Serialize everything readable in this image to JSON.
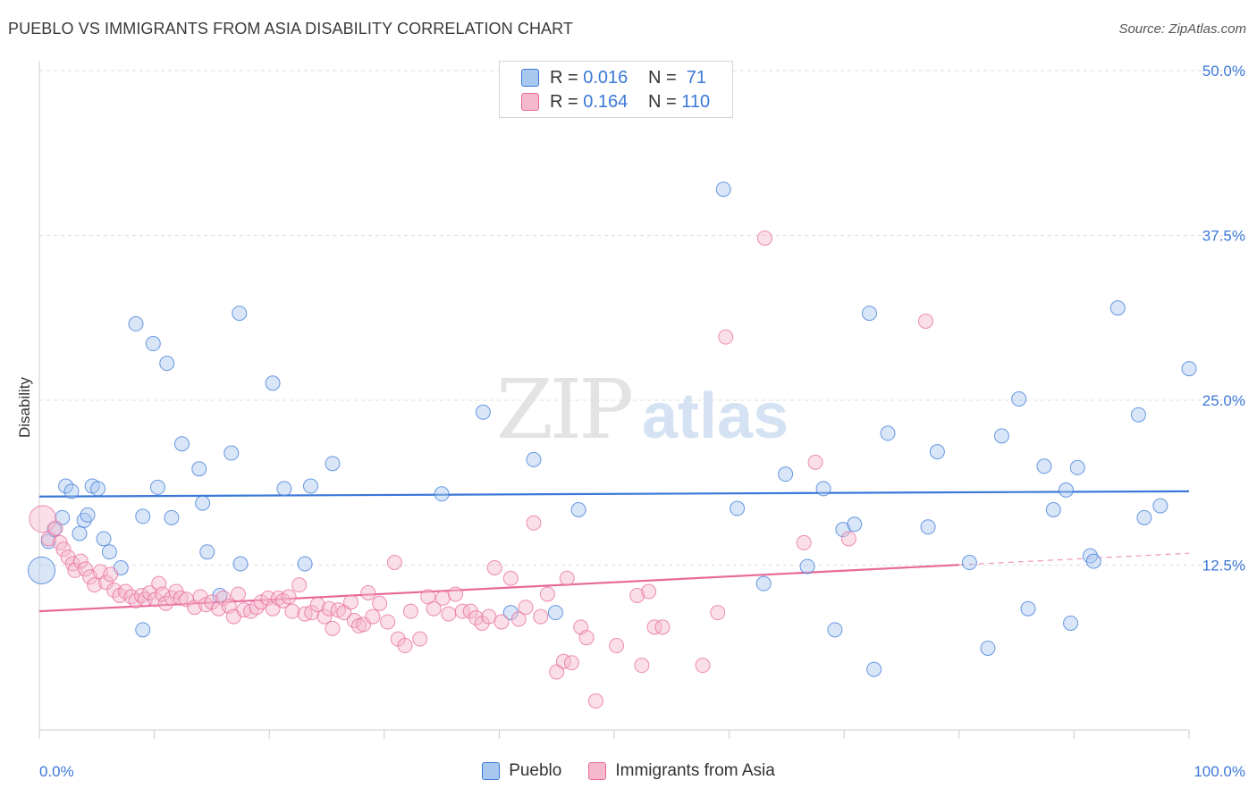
{
  "title": "PUEBLO VS IMMIGRANTS FROM ASIA DISABILITY CORRELATION CHART",
  "source": "Source: ZipAtlas.com",
  "watermark": {
    "zip": "ZIP",
    "atlas": "atlas"
  },
  "colors": {
    "blue": "#3b78d8",
    "blue_fill": "#a9c8f0",
    "pink": "#e8699a",
    "pink_fill": "#f5b8cc",
    "grid": "#dddddd"
  },
  "legend": {
    "rows": [
      {
        "r_label": "R = ",
        "r_value": "0.016",
        "n_label": "N = ",
        "n_value": " 71"
      },
      {
        "r_label": "R = ",
        "r_value": "0.164",
        "n_label": "N = ",
        "n_value": "110"
      }
    ]
  },
  "chart_data": {
    "type": "scatter",
    "title": "PUEBLO VS IMMIGRANTS FROM ASIA DISABILITY CORRELATION CHART",
    "xlabel": "",
    "ylabel": "Disability",
    "xlim": [
      0,
      100
    ],
    "ylim": [
      0,
      50
    ],
    "x_tick_labels": [
      "0.0%",
      "100.0%"
    ],
    "y_ticks": [
      12.5,
      25.0,
      37.5,
      50.0
    ],
    "y_tick_labels": [
      "12.5%",
      "25.0%",
      "37.5%",
      "50.0%"
    ],
    "grid": true,
    "legend_position": "top-center",
    "series": [
      {
        "name": "Pueblo",
        "color": "#3b78d8",
        "trend": {
          "x": [
            0,
            100
          ],
          "y": [
            17.7,
            18.1
          ]
        },
        "points": [
          [
            0.2,
            12.1
          ],
          [
            0.8,
            14.3
          ],
          [
            1.3,
            15.2
          ],
          [
            2.0,
            16.1
          ],
          [
            2.3,
            18.5
          ],
          [
            2.8,
            18.1
          ],
          [
            3.5,
            14.9
          ],
          [
            3.9,
            15.9
          ],
          [
            4.2,
            16.3
          ],
          [
            4.6,
            18.5
          ],
          [
            5.1,
            18.3
          ],
          [
            5.6,
            14.5
          ],
          [
            6.1,
            13.5
          ],
          [
            7.1,
            12.3
          ],
          [
            8.4,
            30.8
          ],
          [
            9.0,
            7.6
          ],
          [
            9.0,
            16.2
          ],
          [
            9.9,
            29.3
          ],
          [
            10.3,
            18.4
          ],
          [
            11.1,
            27.8
          ],
          [
            11.5,
            16.1
          ],
          [
            12.4,
            21.7
          ],
          [
            13.9,
            19.8
          ],
          [
            14.2,
            17.2
          ],
          [
            14.6,
            13.5
          ],
          [
            15.7,
            10.2
          ],
          [
            16.7,
            21.0
          ],
          [
            17.4,
            31.6
          ],
          [
            17.5,
            12.6
          ],
          [
            20.3,
            26.3
          ],
          [
            21.3,
            18.3
          ],
          [
            23.1,
            12.6
          ],
          [
            23.6,
            18.5
          ],
          [
            25.5,
            20.2
          ],
          [
            35.0,
            17.9
          ],
          [
            38.6,
            24.1
          ],
          [
            41.0,
            8.9
          ],
          [
            43.0,
            20.5
          ],
          [
            44.9,
            8.9
          ],
          [
            46.9,
            16.7
          ],
          [
            59.5,
            41.0
          ],
          [
            60.7,
            16.8
          ],
          [
            63.0,
            11.1
          ],
          [
            64.9,
            19.4
          ],
          [
            66.8,
            12.4
          ],
          [
            68.2,
            18.3
          ],
          [
            69.2,
            7.6
          ],
          [
            69.9,
            15.2
          ],
          [
            70.9,
            15.6
          ],
          [
            72.2,
            31.6
          ],
          [
            72.6,
            4.6
          ],
          [
            73.8,
            22.5
          ],
          [
            77.3,
            15.4
          ],
          [
            78.1,
            21.1
          ],
          [
            80.9,
            12.7
          ],
          [
            82.5,
            6.2
          ],
          [
            83.7,
            22.3
          ],
          [
            85.2,
            25.1
          ],
          [
            86.0,
            9.2
          ],
          [
            87.4,
            20.0
          ],
          [
            88.2,
            16.7
          ],
          [
            89.3,
            18.2
          ],
          [
            89.7,
            8.1
          ],
          [
            90.3,
            19.9
          ],
          [
            91.4,
            13.2
          ],
          [
            91.7,
            12.8
          ],
          [
            93.8,
            32.0
          ],
          [
            95.6,
            23.9
          ],
          [
            96.1,
            16.1
          ],
          [
            97.5,
            17.0
          ],
          [
            100.0,
            27.4
          ]
        ]
      },
      {
        "name": "Immigrants from Asia",
        "color": "#e8699a",
        "trend": {
          "x": [
            0,
            100
          ],
          "y": [
            9.0,
            13.4
          ]
        },
        "points": [
          [
            0.3,
            16.0
          ],
          [
            0.8,
            14.5
          ],
          [
            1.4,
            15.3
          ],
          [
            1.8,
            14.2
          ],
          [
            2.1,
            13.7
          ],
          [
            2.5,
            13.1
          ],
          [
            2.9,
            12.6
          ],
          [
            3.1,
            12.1
          ],
          [
            3.6,
            12.8
          ],
          [
            4.0,
            12.2
          ],
          [
            4.4,
            11.6
          ],
          [
            4.8,
            11.0
          ],
          [
            5.3,
            12.0
          ],
          [
            5.8,
            11.2
          ],
          [
            6.2,
            11.8
          ],
          [
            6.5,
            10.6
          ],
          [
            7.0,
            10.2
          ],
          [
            7.5,
            10.5
          ],
          [
            8.0,
            10.1
          ],
          [
            8.4,
            9.8
          ],
          [
            8.9,
            10.2
          ],
          [
            9.2,
            9.9
          ],
          [
            9.6,
            10.4
          ],
          [
            10.1,
            9.9
          ],
          [
            10.4,
            11.1
          ],
          [
            10.7,
            10.3
          ],
          [
            11.0,
            9.6
          ],
          [
            11.5,
            10.0
          ],
          [
            11.9,
            10.5
          ],
          [
            12.3,
            10.0
          ],
          [
            12.8,
            9.9
          ],
          [
            13.5,
            9.3
          ],
          [
            14.0,
            10.1
          ],
          [
            14.5,
            9.5
          ],
          [
            15.0,
            9.7
          ],
          [
            15.6,
            9.2
          ],
          [
            16.0,
            10.0
          ],
          [
            16.5,
            9.4
          ],
          [
            16.9,
            8.6
          ],
          [
            17.3,
            10.3
          ],
          [
            17.8,
            9.1
          ],
          [
            18.4,
            9.0
          ],
          [
            18.9,
            9.3
          ],
          [
            19.3,
            9.7
          ],
          [
            19.9,
            10.0
          ],
          [
            20.3,
            9.2
          ],
          [
            20.8,
            10.0
          ],
          [
            21.2,
            9.8
          ],
          [
            21.7,
            10.1
          ],
          [
            22.0,
            9.0
          ],
          [
            22.6,
            11.0
          ],
          [
            23.1,
            8.8
          ],
          [
            23.7,
            8.9
          ],
          [
            24.2,
            9.5
          ],
          [
            24.8,
            8.6
          ],
          [
            25.2,
            9.2
          ],
          [
            25.5,
            7.7
          ],
          [
            26.0,
            9.1
          ],
          [
            26.5,
            8.9
          ],
          [
            27.1,
            9.7
          ],
          [
            27.4,
            8.3
          ],
          [
            27.8,
            7.9
          ],
          [
            28.2,
            8.0
          ],
          [
            28.6,
            10.4
          ],
          [
            29.0,
            8.6
          ],
          [
            29.6,
            9.6
          ],
          [
            30.3,
            8.2
          ],
          [
            30.9,
            12.7
          ],
          [
            31.2,
            6.9
          ],
          [
            31.8,
            6.4
          ],
          [
            32.3,
            9.0
          ],
          [
            33.1,
            6.9
          ],
          [
            33.8,
            10.1
          ],
          [
            34.3,
            9.2
          ],
          [
            35.1,
            10.0
          ],
          [
            35.6,
            8.8
          ],
          [
            36.2,
            10.3
          ],
          [
            36.8,
            9.0
          ],
          [
            37.5,
            9.0
          ],
          [
            38.0,
            8.5
          ],
          [
            38.5,
            8.1
          ],
          [
            39.1,
            8.6
          ],
          [
            39.6,
            12.3
          ],
          [
            40.2,
            8.2
          ],
          [
            41.0,
            11.5
          ],
          [
            41.7,
            8.4
          ],
          [
            42.3,
            9.3
          ],
          [
            43.0,
            15.7
          ],
          [
            43.6,
            8.6
          ],
          [
            44.2,
            10.3
          ],
          [
            45.0,
            4.4
          ],
          [
            45.6,
            5.2
          ],
          [
            45.9,
            11.5
          ],
          [
            46.3,
            5.1
          ],
          [
            47.1,
            7.8
          ],
          [
            47.6,
            7.0
          ],
          [
            48.4,
            2.2
          ],
          [
            50.2,
            6.4
          ],
          [
            52.4,
            4.9
          ],
          [
            52.0,
            10.2
          ],
          [
            53.0,
            10.5
          ],
          [
            53.5,
            7.8
          ],
          [
            54.2,
            7.8
          ],
          [
            57.7,
            4.9
          ],
          [
            59.0,
            8.9
          ],
          [
            59.7,
            29.8
          ],
          [
            63.1,
            37.3
          ],
          [
            66.5,
            14.2
          ],
          [
            67.5,
            20.3
          ],
          [
            70.4,
            14.5
          ],
          [
            77.1,
            31.0
          ]
        ]
      }
    ]
  },
  "bottom_legend": {
    "items": [
      "Pueblo",
      "Immigrants from Asia"
    ]
  }
}
